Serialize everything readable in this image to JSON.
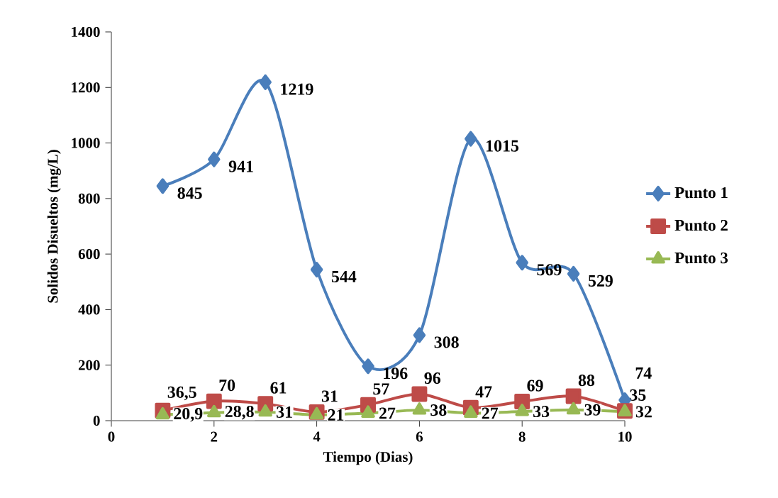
{
  "chart_data": {
    "type": "line",
    "xlabel": "Tiempo (Dias)",
    "ylabel": "Solidos Disueltos  (mg/L)",
    "x": [
      1,
      2,
      3,
      4,
      5,
      6,
      7,
      8,
      9,
      10
    ],
    "series": [
      {
        "name": "Punto 1",
        "color": "#4a7ebb",
        "marker": "diamond",
        "values": [
          845,
          941,
          1219,
          544,
          196,
          308,
          1015,
          569,
          529,
          74
        ],
        "value_labels": [
          "845",
          "941",
          "1219",
          "544",
          "196",
          "308",
          "1015",
          "569",
          "529",
          "74"
        ]
      },
      {
        "name": "Punto 2",
        "color": "#be4b48",
        "marker": "square",
        "values": [
          36.5,
          70,
          61,
          31,
          57,
          96,
          47,
          69,
          88,
          35
        ],
        "value_labels": [
          "36,5",
          "70",
          "61",
          "31",
          "57",
          "96",
          "47",
          "69",
          "88",
          "35"
        ]
      },
      {
        "name": "Punto 3",
        "color": "#98b954",
        "marker": "triangle",
        "values": [
          20.9,
          28.8,
          31,
          21,
          27,
          38,
          27,
          33,
          39,
          32
        ],
        "value_labels": [
          "20,9",
          "28,8",
          "31",
          "21",
          "27",
          "38",
          "27",
          "33",
          "39",
          "32"
        ]
      }
    ],
    "xlim": [
      0,
      10
    ],
    "xticks": [
      0,
      2,
      4,
      6,
      8,
      10
    ],
    "ylim": [
      0,
      1400
    ],
    "yticks": [
      0,
      200,
      400,
      600,
      800,
      1000,
      1200,
      1400
    ],
    "grid": false,
    "legend": "right"
  }
}
